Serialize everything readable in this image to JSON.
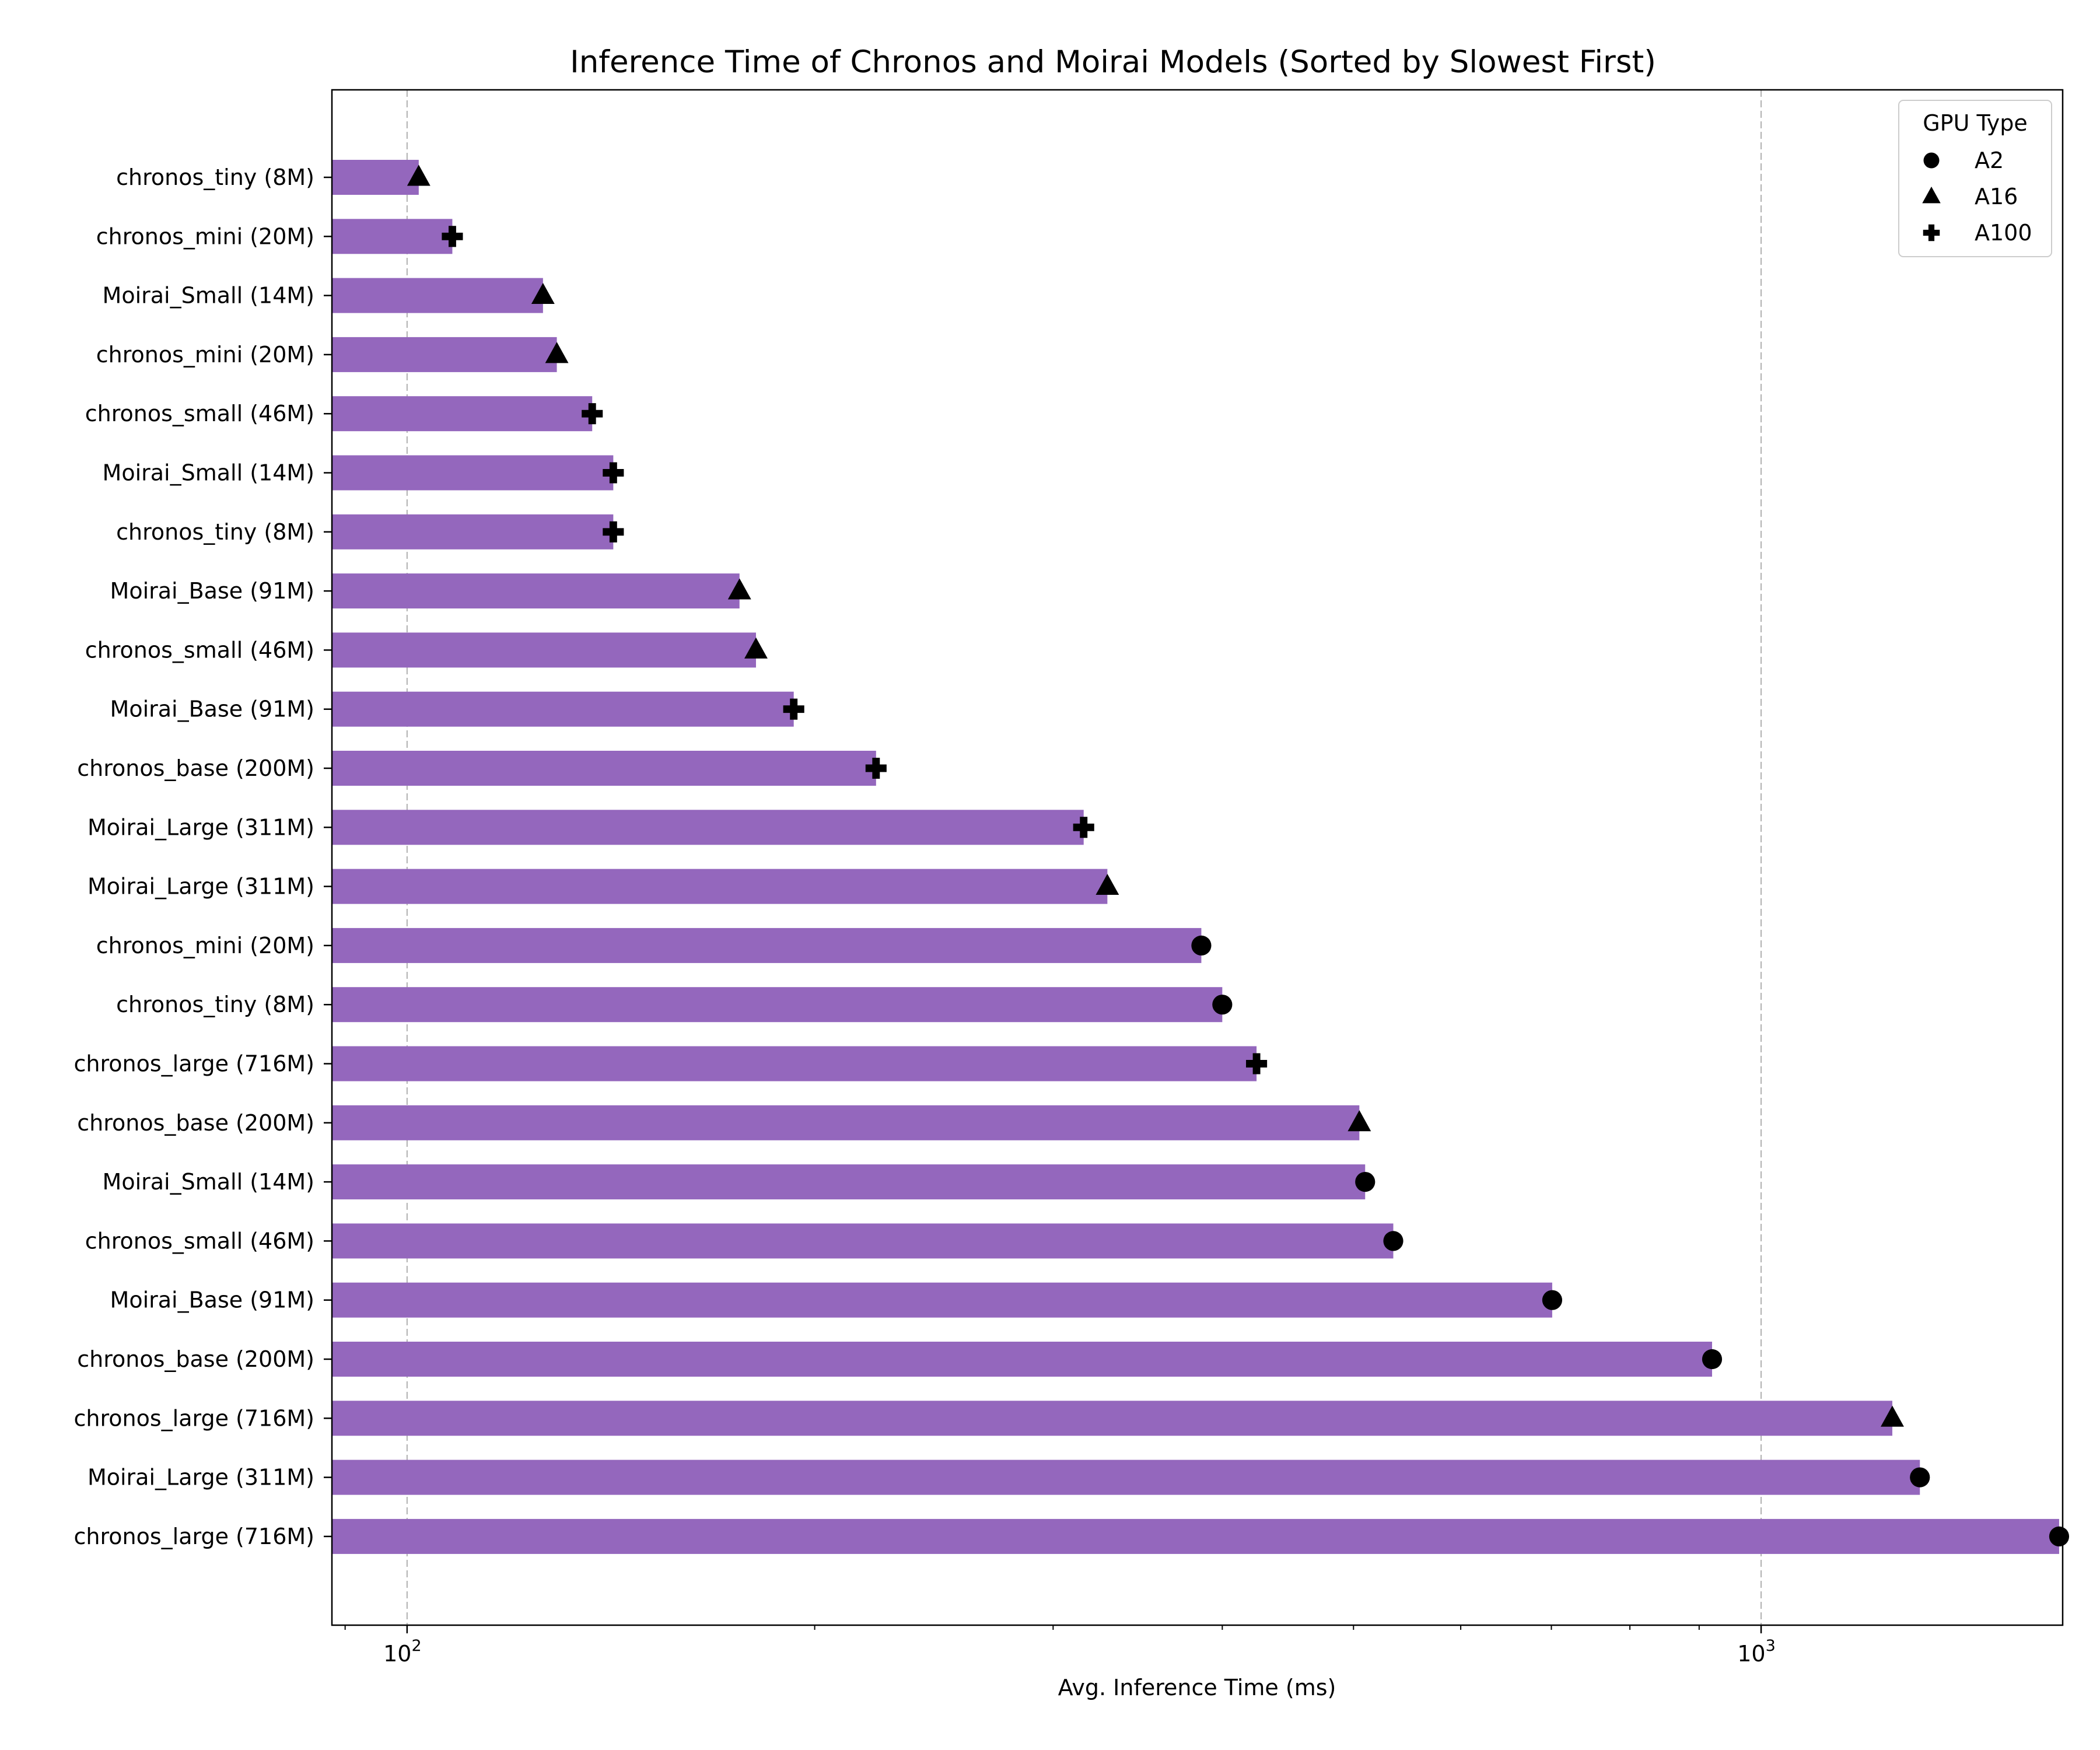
{
  "chart_data": {
    "type": "bar",
    "orientation": "horizontal",
    "title": "Inference Time of Chronos and Moirai Models (Sorted by Slowest First)",
    "xlabel": "Avg. Inference Time (ms)",
    "ylabel": "",
    "x_scale": "log",
    "xlim": [
      88,
      1670
    ],
    "x_ticks": [
      {
        "value": 100,
        "base": "10",
        "exp": "2"
      },
      {
        "value": 1000,
        "base": "10",
        "exp": "3"
      }
    ],
    "grid": "x-major-dashed",
    "bar_color": "#9467bd",
    "marker_color": "#000000",
    "categories": [
      "chronos_tiny (8M)",
      "chronos_mini (20M)",
      "Moirai_Small (14M)",
      "chronos_mini (20M)",
      "chronos_small (46M)",
      "Moirai_Small (14M)",
      "chronos_tiny (8M)",
      "Moirai_Base (91M)",
      "chronos_small (46M)",
      "Moirai_Base (91M)",
      "chronos_base (200M)",
      "Moirai_Large (311M)",
      "Moirai_Large (311M)",
      "chronos_mini (20M)",
      "chronos_tiny (8M)",
      "chronos_large (716M)",
      "chronos_base (200M)",
      "Moirai_Small (14M)",
      "chronos_small (46M)",
      "Moirai_Base (91M)",
      "chronos_base (200M)",
      "chronos_large (716M)",
      "Moirai_Large (311M)",
      "chronos_large (716M)"
    ],
    "values": [
      102,
      108,
      126,
      129,
      137,
      142,
      142,
      176,
      181,
      193,
      222,
      316,
      329,
      386,
      400,
      424,
      505,
      510,
      535,
      701,
      920,
      1250,
      1310,
      1660
    ],
    "gpu": [
      "A16",
      "A100",
      "A16",
      "A16",
      "A100",
      "A100",
      "A100",
      "A16",
      "A16",
      "A100",
      "A100",
      "A100",
      "A16",
      "A2",
      "A2",
      "A100",
      "A16",
      "A2",
      "A2",
      "A2",
      "A2",
      "A16",
      "A2",
      "A2"
    ],
    "legend": {
      "title": "GPU Type",
      "placement": "top-right",
      "entries": [
        {
          "label": "A2",
          "marker": "circle"
        },
        {
          "label": "A16",
          "marker": "triangle"
        },
        {
          "label": "A100",
          "marker": "plus"
        }
      ]
    }
  }
}
